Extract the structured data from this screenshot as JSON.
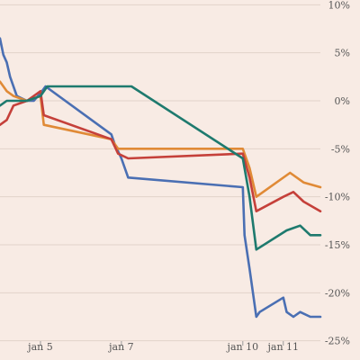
{
  "chart_data": {
    "type": "line",
    "title": "",
    "xlabel": "",
    "ylabel": "",
    "y_axis_position": "right",
    "grid": "horizontal",
    "legend": "none",
    "ylim": [
      -25.5,
      10.5
    ],
    "yticks": [
      10,
      5,
      0,
      -5,
      -10,
      -15,
      -20,
      -25
    ],
    "ytick_labels": [
      "10%",
      "5%",
      "0%",
      "-5%",
      "-10%",
      "-15%",
      "-20%",
      "-25%"
    ],
    "x_domain": [
      "2000-01-04 00:00",
      "2000-01-11 22:00"
    ],
    "xticks": [
      "2000-01-05 00:00",
      "2000-01-07 00:00",
      "2000-01-10 00:00",
      "2000-01-11 00:00"
    ],
    "xtick_labels": [
      "jan 5",
      "jan 7",
      "jan 10",
      "jan 11"
    ],
    "series": [
      {
        "color": "#4a6fb3",
        "points": [
          [
            "2000-01-04 00:00",
            6.5
          ],
          [
            "2000-01-04 02:00",
            4.8
          ],
          [
            "2000-01-04 04:00",
            4.0
          ],
          [
            "2000-01-04 06:00",
            2.5
          ],
          [
            "2000-01-04 10:00",
            0.5
          ],
          [
            "2000-01-04 16:00",
            0.0
          ],
          [
            "2000-01-04 20:00",
            0.0
          ],
          [
            "2000-01-05 00:00",
            0.8
          ],
          [
            "2000-01-05 03:00",
            1.5
          ],
          [
            "2000-01-06 18:00",
            -3.5
          ],
          [
            "2000-01-06 20:00",
            -4.5
          ],
          [
            "2000-01-07 00:00",
            -6.0
          ],
          [
            "2000-01-07 04:00",
            -8.0
          ],
          [
            "2000-01-10 00:00",
            -9.0
          ],
          [
            "2000-01-10 01:00",
            -14.0
          ],
          [
            "2000-01-10 04:00",
            -17.5
          ],
          [
            "2000-01-10 08:00",
            -22.5
          ],
          [
            "2000-01-10 10:00",
            -22.0
          ],
          [
            "2000-01-11 00:00",
            -20.5
          ],
          [
            "2000-01-11 02:00",
            -22.0
          ],
          [
            "2000-01-11 06:00",
            -22.5
          ],
          [
            "2000-01-11 10:00",
            -22.0
          ],
          [
            "2000-01-11 16:00",
            -22.5
          ],
          [
            "2000-01-11 22:00",
            -22.5
          ]
        ]
      },
      {
        "color": "#e08a36",
        "points": [
          [
            "2000-01-04 00:00",
            2.0
          ],
          [
            "2000-01-04 04:00",
            1.0
          ],
          [
            "2000-01-04 08:00",
            0.5
          ],
          [
            "2000-01-04 16:00",
            0.0
          ],
          [
            "2000-01-05 00:00",
            0.5
          ],
          [
            "2000-01-05 02:00",
            -2.5
          ],
          [
            "2000-01-06 18:00",
            -4.0
          ],
          [
            "2000-01-06 22:00",
            -5.0
          ],
          [
            "2000-01-07 04:00",
            -5.0
          ],
          [
            "2000-01-10 00:00",
            -5.0
          ],
          [
            "2000-01-10 04:00",
            -7.0
          ],
          [
            "2000-01-10 08:00",
            -10.0
          ],
          [
            "2000-01-11 04:00",
            -7.5
          ],
          [
            "2000-01-11 12:00",
            -8.5
          ],
          [
            "2000-01-11 22:00",
            -9.0
          ]
        ]
      },
      {
        "color": "#c5403a",
        "points": [
          [
            "2000-01-04 00:00",
            -2.5
          ],
          [
            "2000-01-04 04:00",
            -2.0
          ],
          [
            "2000-01-04 08:00",
            -0.5
          ],
          [
            "2000-01-04 16:00",
            0.0
          ],
          [
            "2000-01-05 00:00",
            1.0
          ],
          [
            "2000-01-05 02:00",
            -1.5
          ],
          [
            "2000-01-06 18:00",
            -4.0
          ],
          [
            "2000-01-06 22:00",
            -5.5
          ],
          [
            "2000-01-07 04:00",
            -6.0
          ],
          [
            "2000-01-10 00:00",
            -5.5
          ],
          [
            "2000-01-10 04:00",
            -8.0
          ],
          [
            "2000-01-10 08:00",
            -11.5
          ],
          [
            "2000-01-11 00:00",
            -10.0
          ],
          [
            "2000-01-11 06:00",
            -9.5
          ],
          [
            "2000-01-11 12:00",
            -10.5
          ],
          [
            "2000-01-11 22:00",
            -11.5
          ]
        ]
      },
      {
        "color": "#1e7a6e",
        "points": [
          [
            "2000-01-04 00:00",
            -0.5
          ],
          [
            "2000-01-04 04:00",
            0.0
          ],
          [
            "2000-01-04 08:00",
            0.0
          ],
          [
            "2000-01-04 16:00",
            0.0
          ],
          [
            "2000-01-05 00:00",
            0.5
          ],
          [
            "2000-01-05 04:00",
            1.5
          ],
          [
            "2000-01-07 00:00",
            1.5
          ],
          [
            "2000-01-07 06:00",
            1.5
          ],
          [
            "2000-01-10 00:00",
            -6.0
          ],
          [
            "2000-01-10 04:00",
            -10.0
          ],
          [
            "2000-01-10 08:00",
            -15.5
          ],
          [
            "2000-01-11 02:00",
            -13.5
          ],
          [
            "2000-01-11 10:00",
            -13.0
          ],
          [
            "2000-01-11 16:00",
            -14.0
          ],
          [
            "2000-01-11 22:00",
            -14.0
          ]
        ]
      }
    ]
  }
}
